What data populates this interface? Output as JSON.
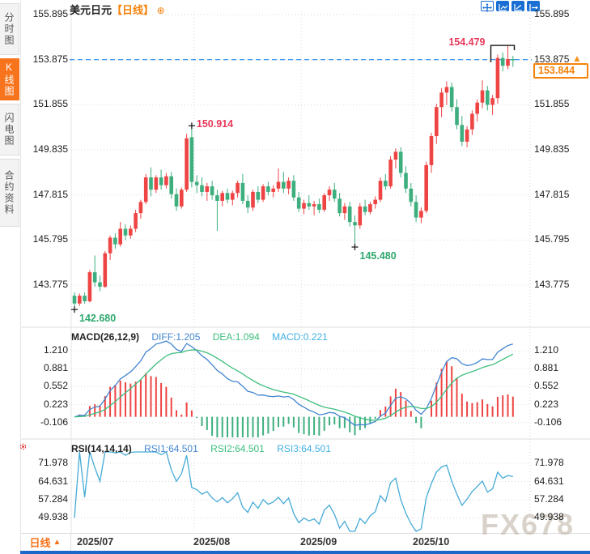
{
  "header": {
    "symbol": "美元日元",
    "period_tag": "【日线】",
    "expand_icon": "⊕"
  },
  "sidebar": {
    "items": [
      {
        "label": "分时图",
        "active": false
      },
      {
        "label": "K线图",
        "active": true
      },
      {
        "label": "闪电图",
        "active": false
      },
      {
        "label": "合约资料",
        "active": false
      }
    ]
  },
  "toolbar": {
    "icons": [
      "crosshair-move",
      "axis-fit",
      "axis-zoom",
      "exit-chart"
    ]
  },
  "chart_data": {
    "type": "candlestick",
    "price_panel": {
      "yticks": [
        "155.895",
        "153.875",
        "151.855",
        "149.835",
        "147.815",
        "145.795",
        "143.775"
      ],
      "dashed_level": 153.875,
      "current_price": "153.844",
      "marker_arrow": "▲",
      "xtick_labels": [
        "2025/07",
        "2025/08",
        "2025/09",
        "2025/10"
      ],
      "month_start_indices": [
        0,
        23,
        44,
        66
      ],
      "annotations": [
        {
          "text": "154.479",
          "index": 85,
          "price": 154.479,
          "kind": "high-bracket"
        },
        {
          "text": "150.914",
          "index": 23,
          "price": 150.914,
          "kind": "high-plus"
        },
        {
          "text": "145.480",
          "index": 55,
          "price": 145.48,
          "kind": "low-plus"
        },
        {
          "text": "142.680",
          "index": 0,
          "price": 142.68,
          "kind": "low-plus"
        }
      ],
      "candles": [
        [
          143.3,
          143.45,
          142.68,
          142.95
        ],
        [
          142.95,
          143.4,
          142.85,
          143.3
        ],
        [
          143.3,
          143.45,
          142.95,
          143.05
        ],
        [
          143.05,
          144.45,
          143.0,
          144.35
        ],
        [
          144.35,
          145.1,
          143.7,
          143.9
        ],
        [
          143.9,
          144.2,
          143.5,
          143.7
        ],
        [
          143.7,
          145.3,
          143.65,
          145.2
        ],
        [
          145.2,
          146.0,
          144.9,
          145.9
        ],
        [
          145.9,
          146.1,
          145.4,
          145.6
        ],
        [
          145.6,
          146.6,
          145.5,
          146.3
        ],
        [
          146.3,
          146.5,
          145.8,
          146.0
        ],
        [
          146.0,
          146.45,
          145.85,
          146.3
        ],
        [
          146.3,
          147.15,
          146.15,
          147.0
        ],
        [
          147.0,
          147.6,
          146.75,
          147.5
        ],
        [
          147.5,
          148.75,
          147.4,
          148.6
        ],
        [
          148.6,
          149.05,
          147.75,
          148.05
        ],
        [
          148.05,
          148.7,
          147.9,
          148.6
        ],
        [
          148.6,
          148.95,
          148.05,
          148.25
        ],
        [
          148.25,
          148.8,
          148.1,
          148.65
        ],
        [
          148.65,
          148.85,
          147.65,
          147.85
        ],
        [
          147.85,
          148.1,
          147.1,
          147.3
        ],
        [
          147.3,
          148.15,
          147.2,
          148.05
        ],
        [
          148.05,
          150.55,
          147.95,
          150.35
        ],
        [
          150.4,
          150.914,
          148.15,
          148.4
        ],
        [
          148.4,
          148.7,
          147.9,
          148.25
        ],
        [
          148.25,
          148.6,
          147.75,
          147.95
        ],
        [
          147.95,
          148.35,
          147.55,
          148.2
        ],
        [
          148.2,
          148.45,
          147.6,
          147.8
        ],
        [
          147.8,
          148.05,
          146.2,
          147.55
        ],
        [
          147.55,
          148.0,
          147.3,
          147.9
        ],
        [
          147.9,
          148.1,
          147.45,
          147.6
        ],
        [
          147.6,
          148.0,
          147.35,
          147.9
        ],
        [
          147.9,
          148.45,
          147.7,
          148.35
        ],
        [
          148.35,
          148.75,
          147.4,
          147.55
        ],
        [
          147.55,
          147.8,
          147.0,
          147.25
        ],
        [
          147.25,
          148.05,
          147.1,
          147.95
        ],
        [
          147.95,
          148.2,
          147.45,
          147.6
        ],
        [
          147.6,
          148.3,
          147.5,
          148.2
        ],
        [
          148.2,
          148.4,
          147.8,
          147.95
        ],
        [
          147.95,
          148.25,
          147.7,
          148.1
        ],
        [
          148.1,
          149.0,
          147.95,
          148.4
        ],
        [
          148.4,
          148.85,
          147.9,
          148.1
        ],
        [
          148.1,
          148.6,
          147.85,
          148.45
        ],
        [
          148.45,
          148.7,
          147.55,
          147.7
        ],
        [
          147.7,
          147.95,
          147.05,
          147.2
        ],
        [
          147.2,
          147.6,
          146.95,
          147.45
        ],
        [
          147.45,
          147.8,
          147.15,
          147.3
        ],
        [
          147.3,
          147.55,
          146.9,
          147.4
        ],
        [
          147.4,
          147.65,
          147.0,
          147.15
        ],
        [
          147.15,
          147.9,
          147.05,
          147.8
        ],
        [
          147.8,
          148.2,
          147.55,
          148.05
        ],
        [
          148.05,
          148.35,
          147.5,
          147.65
        ],
        [
          147.65,
          147.9,
          146.85,
          147.0
        ],
        [
          147.0,
          147.45,
          146.7,
          147.3
        ],
        [
          147.3,
          147.5,
          146.4,
          146.6
        ],
        [
          146.6,
          146.9,
          145.48,
          146.45
        ],
        [
          146.45,
          147.45,
          146.3,
          147.3
        ],
        [
          147.3,
          147.6,
          146.9,
          147.05
        ],
        [
          147.05,
          147.5,
          146.95,
          147.4
        ],
        [
          147.4,
          147.75,
          147.2,
          147.6
        ],
        [
          147.6,
          148.6,
          147.5,
          148.45
        ],
        [
          148.45,
          148.75,
          148.05,
          148.2
        ],
        [
          148.2,
          149.55,
          148.1,
          149.4
        ],
        [
          149.4,
          149.9,
          149.0,
          149.75
        ],
        [
          149.75,
          149.95,
          148.6,
          148.8
        ],
        [
          148.8,
          149.1,
          147.9,
          148.1
        ],
        [
          148.1,
          148.35,
          147.3,
          147.5
        ],
        [
          147.5,
          147.8,
          146.6,
          146.8
        ],
        [
          146.8,
          147.25,
          146.55,
          147.1
        ],
        [
          147.1,
          149.3,
          147.0,
          149.15
        ],
        [
          149.15,
          150.6,
          148.8,
          150.45
        ],
        [
          150.45,
          151.9,
          150.1,
          151.75
        ],
        [
          151.75,
          152.6,
          151.3,
          152.4
        ],
        [
          152.4,
          152.9,
          151.85,
          152.65
        ],
        [
          152.65,
          152.85,
          151.55,
          151.75
        ],
        [
          151.75,
          152.1,
          150.75,
          150.95
        ],
        [
          150.95,
          151.35,
          150.0,
          150.2
        ],
        [
          150.2,
          150.9,
          149.95,
          150.75
        ],
        [
          150.75,
          151.6,
          150.5,
          151.45
        ],
        [
          151.45,
          152.1,
          151.1,
          151.95
        ],
        [
          151.95,
          152.95,
          151.7,
          152.5
        ],
        [
          152.5,
          152.7,
          151.6,
          151.85
        ],
        [
          151.85,
          152.3,
          151.4,
          152.15
        ],
        [
          152.15,
          154.1,
          151.9,
          153.95
        ],
        [
          153.95,
          154.2,
          153.35,
          153.6
        ],
        [
          153.6,
          154.479,
          153.45,
          153.9
        ],
        [
          153.9,
          154.05,
          153.55,
          153.844
        ]
      ]
    },
    "macd_panel": {
      "title": "MACD(26,12,9)",
      "diff_label": "DIFF:1.205",
      "dea_label": "DEA:1.094",
      "macd_label": "MACD:0.221",
      "yticks": [
        "1.210",
        "0.881",
        "0.552",
        "0.223",
        "-0.106"
      ]
    },
    "rsi_panel": {
      "title": "RSI(14,14,14)",
      "rsi1_label": "RSI1:64.501",
      "rsi2_label": "RSI2:64.501",
      "rsi3_label": "RSI3:64.501",
      "yticks": [
        "71.978",
        "64.631",
        "57.284",
        "49.938"
      ]
    },
    "footer": {
      "period_label": "日线",
      "arrow": "▲"
    },
    "watermark": "FX678"
  },
  "colors": {
    "up": "#ee4444",
    "down": "#3daf7e",
    "accent_orange": "#f7820a",
    "dashed_line": "#1e88ee",
    "annotation_red": "#e8395a",
    "annotation_green": "#2fa86e",
    "diff_blue": "#4285d0",
    "dea_green": "#3dbd7d",
    "macd_cyan": "#41b0e3",
    "rsi_line": "#45aad6",
    "grid": "#d9d9d9",
    "toolbar_blue": "#1a6fd4",
    "bottom_bar": "#1b66c9",
    "watermark": "#b9af9f"
  }
}
